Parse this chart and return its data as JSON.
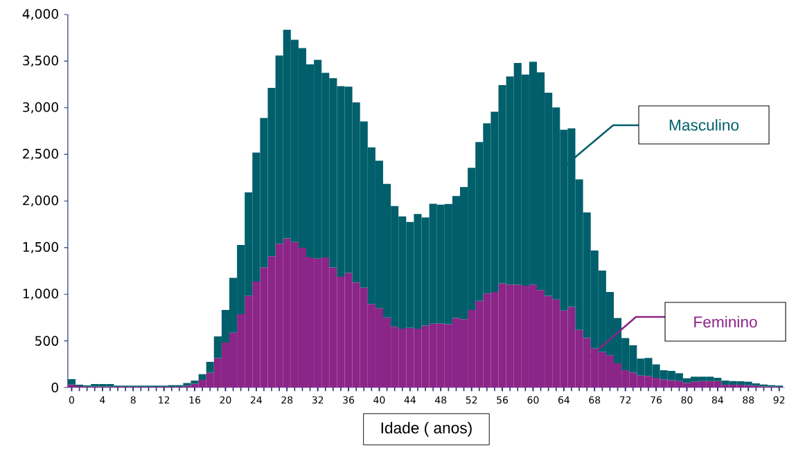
{
  "chart_data": {
    "type": "bar",
    "xlabel": "Idade ( anos)",
    "stacked": true,
    "categories": [
      "0",
      null,
      null,
      null,
      "4",
      null,
      null,
      null,
      "8",
      null,
      null,
      null,
      "12",
      null,
      null,
      null,
      "16",
      null,
      null,
      null,
      "20",
      null,
      null,
      null,
      "24",
      null,
      null,
      null,
      "28",
      null,
      null,
      null,
      "32",
      null,
      null,
      null,
      "36",
      null,
      null,
      null,
      "40",
      null,
      null,
      null,
      "44",
      null,
      null,
      null,
      "48",
      null,
      null,
      null,
      "52",
      null,
      null,
      null,
      "56",
      null,
      null,
      null,
      "60",
      null,
      null,
      null,
      "64",
      null,
      null,
      null,
      "68",
      null,
      null,
      null,
      "72",
      null,
      null,
      null,
      "76",
      null,
      null,
      null,
      "80",
      null,
      null,
      null,
      "84",
      null,
      null,
      null,
      "88",
      null,
      null,
      null,
      "92"
    ],
    "series": [
      {
        "name": "Feminino",
        "color": "#8b2587",
        "values": [
          32,
          15,
          10,
          10,
          10,
          10,
          8,
          8,
          8,
          8,
          8,
          8,
          8,
          8,
          8,
          18,
          40,
          82,
          159,
          315,
          482,
          588,
          786,
          985,
          1136,
          1290,
          1409,
          1541,
          1600,
          1561,
          1500,
          1395,
          1383,
          1395,
          1287,
          1188,
          1229,
          1126,
          1070,
          897,
          852,
          752,
          652,
          631,
          641,
          631,
          665,
          684,
          686,
          679,
          746,
          733,
          831,
          929,
          1008,
          1024,
          1116,
          1103,
          1103,
          1090,
          1103,
          1045,
          984,
          945,
          826,
          865,
          618,
          532,
          420,
          383,
          346,
          260,
          185,
          161,
          128,
          124,
          104,
          86,
          79,
          69,
          49,
          62,
          69,
          69,
          69,
          30,
          30,
          30,
          25,
          20,
          12,
          10,
          7
        ]
      },
      {
        "name": "Masculino",
        "color": "#005f6b",
        "values": [
          58,
          15,
          13,
          27,
          27,
          27,
          12,
          12,
          12,
          12,
          12,
          12,
          12,
          17,
          17,
          30,
          34,
          61,
          116,
          233,
          350,
          588,
          743,
          1108,
          1384,
          1601,
          1805,
          2020,
          2236,
          2169,
          2141,
          2071,
          2131,
          1980,
          2030,
          2044,
          1998,
          1931,
          1783,
          1678,
          1580,
          1431,
          1295,
          1203,
          1135,
          1229,
          1158,
          1287,
          1275,
          1289,
          1307,
          1418,
          1526,
          1703,
          1825,
          1933,
          2127,
          2233,
          2378,
          2267,
          2391,
          2336,
          2178,
          2058,
          1939,
          1915,
          1613,
          1346,
          1050,
          872,
          678,
          485,
          345,
          292,
          182,
          193,
          144,
          99,
          99,
          84,
          50,
          54,
          47,
          47,
          35,
          44,
          39,
          37,
          37,
          24,
          20,
          15,
          13
        ]
      }
    ],
    "ylim": [
      0,
      4000
    ],
    "yticks": [
      0,
      500,
      {
        "value": 1000,
        "label": "1,000"
      },
      {
        "value": 1500,
        "label": "1,500"
      },
      {
        "value": 2000,
        "label": "2,000"
      },
      {
        "value": 2500,
        "label": "2,500"
      },
      {
        "value": 3000,
        "label": "3,000"
      },
      {
        "value": 3500,
        "label": "3,500"
      },
      {
        "value": 4000,
        "label": "4,000"
      }
    ]
  }
}
